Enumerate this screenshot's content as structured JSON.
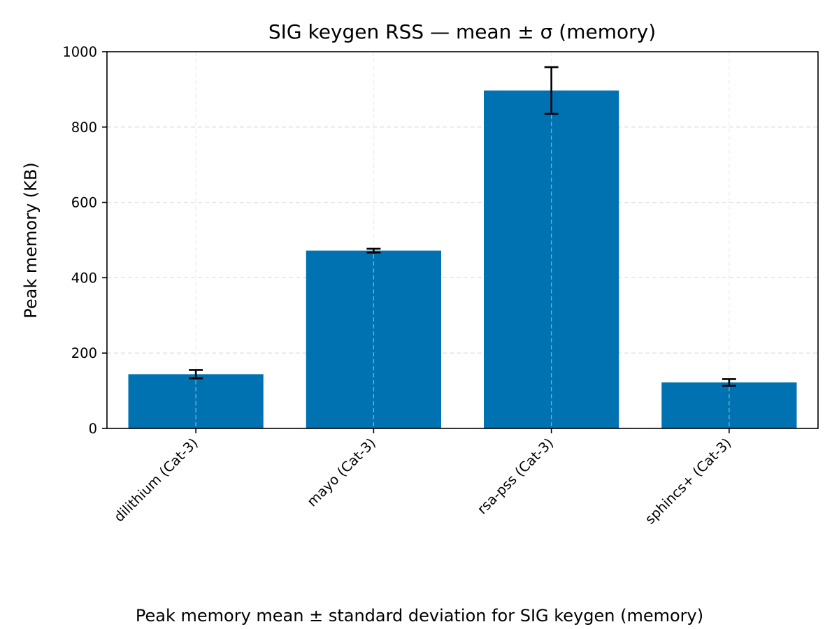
{
  "chart_data": {
    "type": "bar",
    "title": "SIG keygen RSS — mean ± σ (memory)",
    "xlabel": "",
    "ylabel": "Peak memory (KB)",
    "caption": "Peak memory mean ± standard deviation for SIG keygen (memory)",
    "categories": [
      "dilithium (Cat-3)",
      "mayo (Cat-3)",
      "rsa-pss (Cat-3)",
      "sphincs+ (Cat-3)"
    ],
    "values": [
      144,
      472,
      897,
      122
    ],
    "errors": [
      11,
      5,
      62,
      9
    ],
    "ylim": [
      0,
      1000
    ],
    "yticks": [
      0,
      200,
      400,
      600,
      800,
      1000
    ],
    "grid": true,
    "colors": {
      "bar": "#0072b2",
      "error_bar": "#000000",
      "grid": "#e0e0e0",
      "axis": "#000000"
    }
  }
}
